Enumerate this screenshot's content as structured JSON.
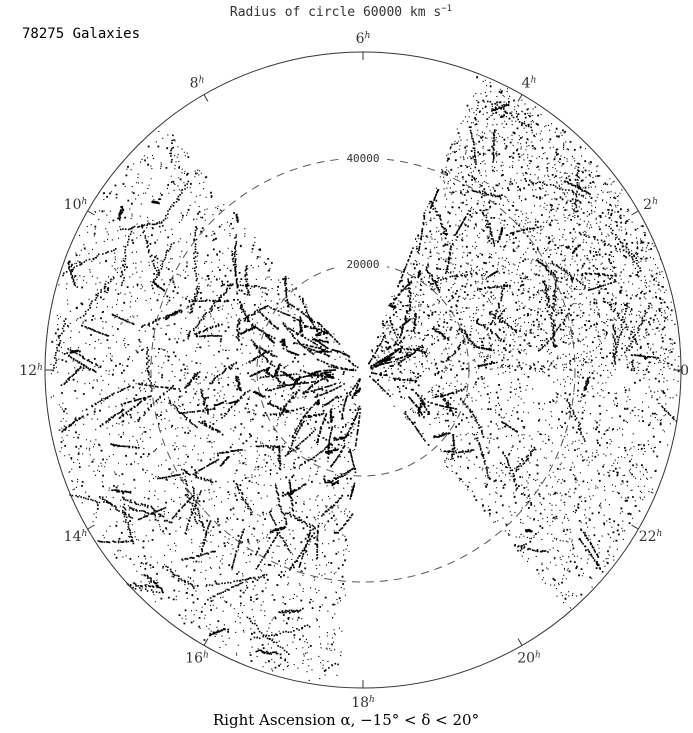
{
  "chart_data": {
    "type": "scatter",
    "projection": "polar",
    "count_label": "78275 Galaxies",
    "title": "Radius of circle 60000 km s",
    "title_superscript": "−1",
    "xlabel": "Right Ascension α, −15° < δ < 20°",
    "radius_max": 60000,
    "radial_rings": [
      {
        "value": 20000,
        "label": "20000"
      },
      {
        "value": 40000,
        "label": "40000"
      }
    ],
    "ra_ticks": [
      {
        "hour": 0,
        "label": "0",
        "sup": ""
      },
      {
        "hour": 2,
        "label": "2",
        "sup": "h"
      },
      {
        "hour": 4,
        "label": "4",
        "sup": "h"
      },
      {
        "hour": 6,
        "label": "6",
        "sup": "h"
      },
      {
        "hour": 8,
        "label": "8",
        "sup": "h"
      },
      {
        "hour": 10,
        "label": "10",
        "sup": "h"
      },
      {
        "hour": 12,
        "label": "12",
        "sup": "h"
      },
      {
        "hour": 14,
        "label": "14",
        "sup": "h"
      },
      {
        "hour": 16,
        "label": "16",
        "sup": "h"
      },
      {
        "hour": 18,
        "label": "18",
        "sup": "h"
      },
      {
        "hour": 20,
        "label": "20",
        "sup": "h"
      },
      {
        "hour": 22,
        "label": "22",
        "sup": "h"
      }
    ],
    "survey_wedges": [
      {
        "ra_start_h": 0.0,
        "ra_end_h": 4.6,
        "density": 1.0
      },
      {
        "ra_start_h": 8.6,
        "ra_end_h": 17.7,
        "density": 1.3
      },
      {
        "ra_start_h": 20.7,
        "ra_end_h": 24.0,
        "density": 0.55
      }
    ],
    "grid": false,
    "colors": {
      "points": "#000000",
      "axes": "#333333",
      "rings": "#555555"
    }
  }
}
